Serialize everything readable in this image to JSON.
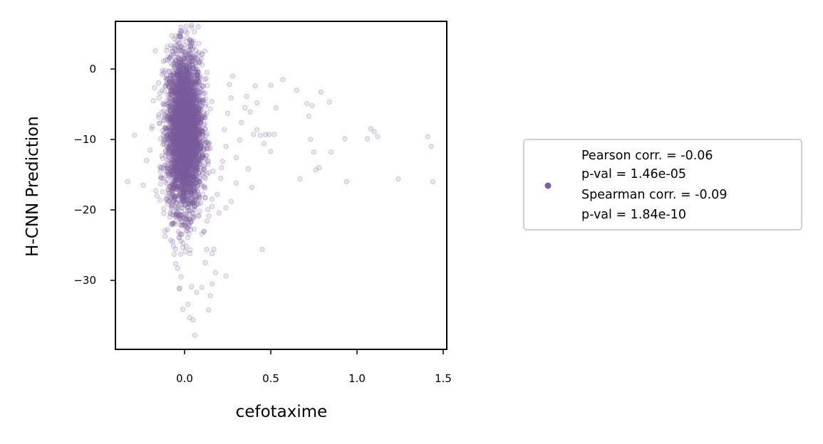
{
  "chart_data": {
    "type": "scatter",
    "xlabel": "cefotaxime",
    "ylabel": "H-CNN Prediction",
    "xlim": [
      -0.4,
      1.53
    ],
    "ylim": [
      -40,
      7
    ],
    "xticks": [
      0.0,
      0.5,
      1.0,
      1.5
    ],
    "xtick_labels": [
      "0.0",
      "0.5",
      "1.0",
      "1.5"
    ],
    "yticks": [
      0,
      -10,
      -20,
      -30
    ],
    "ytick_labels": [
      "0",
      "−10",
      "−20",
      "−30"
    ],
    "grid": false,
    "legend_placement": "right, outside",
    "color": "#7b5f9e",
    "series": [
      {
        "legend_lines": [
          "Pearson corr. = -0.06",
          "p-val = 1.46e-05",
          "Spearman corr. = -0.09",
          "p-val = 1.84e-10"
        ],
        "cluster": {
          "x_center": 0.0,
          "x_spread": 0.05,
          "y_center": -9,
          "y_spread": 5.5,
          "count": 4000
        },
        "points": [
          [
            -0.33,
            -16.0
          ],
          [
            -0.24,
            -16.5
          ],
          [
            -0.22,
            -13.0
          ],
          [
            -0.29,
            -9.4
          ],
          [
            -0.2,
            -11.5
          ],
          [
            -0.18,
            -4.5
          ],
          [
            -0.15,
            -6.5
          ],
          [
            -0.19,
            -8.5
          ],
          [
            -0.14,
            -14.5
          ],
          [
            -0.16,
            -18.0
          ],
          [
            -0.12,
            -20.5
          ],
          [
            -0.1,
            -22.8
          ],
          [
            -0.08,
            -24.3
          ],
          [
            -0.06,
            -26.3
          ],
          [
            -0.04,
            -28.3
          ],
          [
            -0.02,
            -29.5
          ],
          [
            -0.03,
            -31.2
          ],
          [
            0.02,
            -33.4
          ],
          [
            -0.01,
            -34.1
          ],
          [
            0.03,
            -35.3
          ],
          [
            0.05,
            -35.6
          ],
          [
            0.06,
            -37.8
          ],
          [
            0.04,
            -30.9
          ],
          [
            0.07,
            -31.7
          ],
          [
            0.1,
            -31.0
          ],
          [
            0.14,
            -34.2
          ],
          [
            0.15,
            -32.2
          ],
          [
            0.16,
            -30.5
          ],
          [
            0.18,
            -28.9
          ],
          [
            0.24,
            -29.4
          ],
          [
            0.12,
            -27.5
          ],
          [
            0.16,
            -26.2
          ],
          [
            0.17,
            -25.6
          ],
          [
            0.1,
            -23.4
          ],
          [
            0.13,
            -21.6
          ],
          [
            0.16,
            -19.5
          ],
          [
            0.19,
            -17.8
          ],
          [
            0.21,
            -15.5
          ],
          [
            0.22,
            -13.1
          ],
          [
            0.24,
            -11.0
          ],
          [
            0.23,
            -8.6
          ],
          [
            0.25,
            -6.3
          ],
          [
            0.27,
            -4.1
          ],
          [
            0.26,
            -2.2
          ],
          [
            0.28,
            -1.0
          ],
          [
            0.3,
            -12.6
          ],
          [
            0.32,
            -10.1
          ],
          [
            0.33,
            -7.6
          ],
          [
            0.35,
            -5.5
          ],
          [
            0.36,
            -3.9
          ],
          [
            0.38,
            -6.1
          ],
          [
            0.4,
            -9.3
          ],
          [
            0.42,
            -8.6
          ],
          [
            0.37,
            -14.2
          ],
          [
            0.39,
            -16.8
          ],
          [
            0.3,
            -16.2
          ],
          [
            0.27,
            -18.8
          ],
          [
            0.24,
            -19.7
          ],
          [
            0.2,
            -20.4
          ],
          [
            0.45,
            -25.6
          ],
          [
            0.44,
            -9.4
          ],
          [
            0.47,
            -9.3
          ],
          [
            0.49,
            -9.3
          ],
          [
            0.52,
            -9.3
          ],
          [
            0.5,
            -11.7
          ],
          [
            0.42,
            -4.8
          ],
          [
            0.41,
            -2.4
          ],
          [
            0.5,
            -2.3
          ],
          [
            0.57,
            -1.5
          ],
          [
            0.53,
            -5.5
          ],
          [
            0.46,
            -10.6
          ],
          [
            0.67,
            -15.6
          ],
          [
            0.65,
            -3.0
          ],
          [
            0.71,
            -4.9
          ],
          [
            0.74,
            -5.2
          ],
          [
            0.73,
            -10.0
          ],
          [
            0.75,
            -11.8
          ],
          [
            0.76,
            -14.3
          ],
          [
            0.78,
            -14.0
          ],
          [
            0.79,
            -3.3
          ],
          [
            0.72,
            -6.7
          ],
          [
            0.85,
            -11.8
          ],
          [
            0.84,
            -4.7
          ],
          [
            0.93,
            -9.9
          ],
          [
            0.94,
            -16.0
          ],
          [
            1.06,
            -9.9
          ],
          [
            1.08,
            -8.5
          ],
          [
            1.1,
            -8.9
          ],
          [
            1.12,
            -9.6
          ],
          [
            1.24,
            -15.6
          ],
          [
            1.41,
            -9.6
          ],
          [
            1.43,
            -11.0
          ],
          [
            1.44,
            -16.0
          ],
          [
            -0.05,
            4.7
          ],
          [
            -0.02,
            3.2
          ],
          [
            0.06,
            1.5
          ],
          [
            0.09,
            0.9
          ],
          [
            0.13,
            -0.5
          ],
          [
            -0.13,
            -0.8
          ],
          [
            -0.11,
            1.2
          ]
        ]
      }
    ]
  }
}
